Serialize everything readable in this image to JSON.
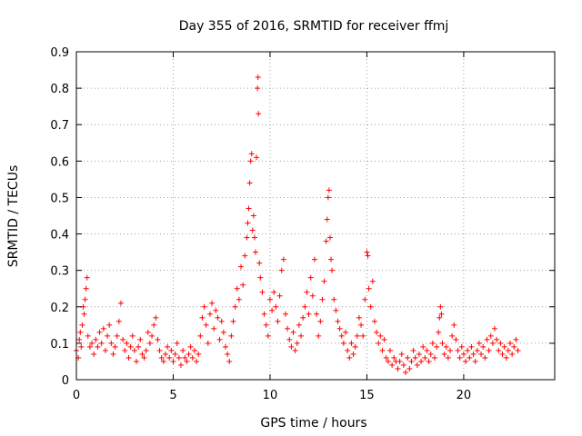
{
  "chart_data": {
    "type": "scatter",
    "title": "Day 355 of 2016, SRMTID for receiver ffmj",
    "xlabel": "GPS time / hours",
    "ylabel": "SRMTID / TECUs",
    "xlim": [
      0,
      24.7
    ],
    "ylim": [
      0,
      0.9
    ],
    "xticks": [
      0,
      5,
      10,
      15,
      20
    ],
    "xtick_labels": [
      "0",
      "5",
      "10",
      "15",
      "20"
    ],
    "yticks": [
      0,
      0.1,
      0.2,
      0.3,
      0.4,
      0.5,
      0.6,
      0.7,
      0.8,
      0.9
    ],
    "ytick_labels": [
      "0",
      "0.1",
      "0.2",
      "0.3",
      "0.4",
      "0.5",
      "0.6",
      "0.7",
      "0.8",
      "0.9"
    ],
    "grid": true,
    "marker": "+",
    "color": "#ff0000",
    "series": [
      {
        "name": "SRMTID",
        "points": [
          [
            0.0,
            0.08
          ],
          [
            0.1,
            0.06
          ],
          [
            0.15,
            0.11
          ],
          [
            0.2,
            0.13
          ],
          [
            0.25,
            0.09
          ],
          [
            0.3,
            0.15
          ],
          [
            0.35,
            0.2
          ],
          [
            0.4,
            0.18
          ],
          [
            0.45,
            0.22
          ],
          [
            0.5,
            0.25
          ],
          [
            0.55,
            0.28
          ],
          [
            0.6,
            0.12
          ],
          [
            0.7,
            0.09
          ],
          [
            0.8,
            0.1
          ],
          [
            0.9,
            0.07
          ],
          [
            1.0,
            0.11
          ],
          [
            1.1,
            0.09
          ],
          [
            1.2,
            0.13
          ],
          [
            1.3,
            0.1
          ],
          [
            1.4,
            0.14
          ],
          [
            1.5,
            0.08
          ],
          [
            1.6,
            0.12
          ],
          [
            1.7,
            0.15
          ],
          [
            1.8,
            0.1
          ],
          [
            1.9,
            0.07
          ],
          [
            2.0,
            0.09
          ],
          [
            2.1,
            0.12
          ],
          [
            2.2,
            0.16
          ],
          [
            2.3,
            0.21
          ],
          [
            2.4,
            0.11
          ],
          [
            2.5,
            0.08
          ],
          [
            2.6,
            0.1
          ],
          [
            2.7,
            0.06
          ],
          [
            2.8,
            0.09
          ],
          [
            2.9,
            0.12
          ],
          [
            3.0,
            0.08
          ],
          [
            3.1,
            0.05
          ],
          [
            3.2,
            0.09
          ],
          [
            3.3,
            0.11
          ],
          [
            3.4,
            0.07
          ],
          [
            3.5,
            0.06
          ],
          [
            3.6,
            0.08
          ],
          [
            3.7,
            0.13
          ],
          [
            3.8,
            0.1
          ],
          [
            3.9,
            0.12
          ],
          [
            4.0,
            0.15
          ],
          [
            4.1,
            0.17
          ],
          [
            4.2,
            0.11
          ],
          [
            4.3,
            0.08
          ],
          [
            4.4,
            0.06
          ],
          [
            4.5,
            0.05
          ],
          [
            4.6,
            0.07
          ],
          [
            4.7,
            0.09
          ],
          [
            4.8,
            0.06
          ],
          [
            4.9,
            0.08
          ],
          [
            5.0,
            0.05
          ],
          [
            5.1,
            0.07
          ],
          [
            5.2,
            0.1
          ],
          [
            5.3,
            0.06
          ],
          [
            5.4,
            0.04
          ],
          [
            5.5,
            0.08
          ],
          [
            5.6,
            0.06
          ],
          [
            5.7,
            0.05
          ],
          [
            5.8,
            0.07
          ],
          [
            5.9,
            0.09
          ],
          [
            6.0,
            0.06
          ],
          [
            6.1,
            0.08
          ],
          [
            6.2,
            0.05
          ],
          [
            6.3,
            0.07
          ],
          [
            6.4,
            0.12
          ],
          [
            6.5,
            0.17
          ],
          [
            6.6,
            0.2
          ],
          [
            6.7,
            0.15
          ],
          [
            6.8,
            0.1
          ],
          [
            6.9,
            0.18
          ],
          [
            7.0,
            0.21
          ],
          [
            7.1,
            0.14
          ],
          [
            7.2,
            0.19
          ],
          [
            7.3,
            0.17
          ],
          [
            7.4,
            0.11
          ],
          [
            7.5,
            0.16
          ],
          [
            7.6,
            0.13
          ],
          [
            7.7,
            0.09
          ],
          [
            7.8,
            0.07
          ],
          [
            7.9,
            0.05
          ],
          [
            8.0,
            0.12
          ],
          [
            8.1,
            0.16
          ],
          [
            8.2,
            0.2
          ],
          [
            8.3,
            0.25
          ],
          [
            8.4,
            0.22
          ],
          [
            8.5,
            0.31
          ],
          [
            8.6,
            0.26
          ],
          [
            8.7,
            0.34
          ],
          [
            8.8,
            0.39
          ],
          [
            8.85,
            0.43
          ],
          [
            8.9,
            0.47
          ],
          [
            8.95,
            0.54
          ],
          [
            9.0,
            0.6
          ],
          [
            9.05,
            0.62
          ],
          [
            9.1,
            0.41
          ],
          [
            9.15,
            0.45
          ],
          [
            9.2,
            0.39
          ],
          [
            9.25,
            0.35
          ],
          [
            9.3,
            0.61
          ],
          [
            9.35,
            0.8
          ],
          [
            9.38,
            0.83
          ],
          [
            9.4,
            0.73
          ],
          [
            9.45,
            0.32
          ],
          [
            9.5,
            0.28
          ],
          [
            9.6,
            0.24
          ],
          [
            9.7,
            0.18
          ],
          [
            9.8,
            0.15
          ],
          [
            9.9,
            0.12
          ],
          [
            10.0,
            0.22
          ],
          [
            10.1,
            0.19
          ],
          [
            10.2,
            0.24
          ],
          [
            10.3,
            0.2
          ],
          [
            10.4,
            0.16
          ],
          [
            10.5,
            0.23
          ],
          [
            10.6,
            0.3
          ],
          [
            10.7,
            0.33
          ],
          [
            10.8,
            0.18
          ],
          [
            10.9,
            0.14
          ],
          [
            11.0,
            0.11
          ],
          [
            11.1,
            0.09
          ],
          [
            11.2,
            0.13
          ],
          [
            11.3,
            0.08
          ],
          [
            11.4,
            0.1
          ],
          [
            11.5,
            0.15
          ],
          [
            11.6,
            0.12
          ],
          [
            11.7,
            0.17
          ],
          [
            11.8,
            0.2
          ],
          [
            11.9,
            0.24
          ],
          [
            12.0,
            0.18
          ],
          [
            12.1,
            0.28
          ],
          [
            12.2,
            0.23
          ],
          [
            12.3,
            0.33
          ],
          [
            12.4,
            0.18
          ],
          [
            12.5,
            0.12
          ],
          [
            12.6,
            0.16
          ],
          [
            12.7,
            0.22
          ],
          [
            12.8,
            0.27
          ],
          [
            12.9,
            0.38
          ],
          [
            12.95,
            0.44
          ],
          [
            13.0,
            0.5
          ],
          [
            13.05,
            0.52
          ],
          [
            13.1,
            0.39
          ],
          [
            13.15,
            0.33
          ],
          [
            13.2,
            0.3
          ],
          [
            13.3,
            0.22
          ],
          [
            13.4,
            0.19
          ],
          [
            13.5,
            0.16
          ],
          [
            13.6,
            0.14
          ],
          [
            13.7,
            0.12
          ],
          [
            13.8,
            0.1
          ],
          [
            13.9,
            0.13
          ],
          [
            14.0,
            0.08
          ],
          [
            14.1,
            0.06
          ],
          [
            14.2,
            0.1
          ],
          [
            14.3,
            0.07
          ],
          [
            14.4,
            0.09
          ],
          [
            14.5,
            0.12
          ],
          [
            14.6,
            0.17
          ],
          [
            14.7,
            0.15
          ],
          [
            14.8,
            0.12
          ],
          [
            14.9,
            0.22
          ],
          [
            15.0,
            0.35
          ],
          [
            15.05,
            0.34
          ],
          [
            15.1,
            0.25
          ],
          [
            15.2,
            0.2
          ],
          [
            15.3,
            0.27
          ],
          [
            15.4,
            0.16
          ],
          [
            15.5,
            0.13
          ],
          [
            15.6,
            0.1
          ],
          [
            15.7,
            0.12
          ],
          [
            15.8,
            0.08
          ],
          [
            15.9,
            0.11
          ],
          [
            16.0,
            0.06
          ],
          [
            16.1,
            0.05
          ],
          [
            16.2,
            0.08
          ],
          [
            16.3,
            0.04
          ],
          [
            16.4,
            0.06
          ],
          [
            16.5,
            0.05
          ],
          [
            16.6,
            0.03
          ],
          [
            16.7,
            0.05
          ],
          [
            16.8,
            0.07
          ],
          [
            16.9,
            0.04
          ],
          [
            17.0,
            0.02
          ],
          [
            17.1,
            0.06
          ],
          [
            17.2,
            0.03
          ],
          [
            17.3,
            0.05
          ],
          [
            17.4,
            0.08
          ],
          [
            17.5,
            0.06
          ],
          [
            17.6,
            0.04
          ],
          [
            17.7,
            0.07
          ],
          [
            17.8,
            0.05
          ],
          [
            17.9,
            0.09
          ],
          [
            18.0,
            0.06
          ],
          [
            18.1,
            0.08
          ],
          [
            18.2,
            0.05
          ],
          [
            18.3,
            0.07
          ],
          [
            18.4,
            0.1
          ],
          [
            18.5,
            0.06
          ],
          [
            18.6,
            0.09
          ],
          [
            18.7,
            0.13
          ],
          [
            18.75,
            0.17
          ],
          [
            18.8,
            0.2
          ],
          [
            18.85,
            0.18
          ],
          [
            18.9,
            0.1
          ],
          [
            19.0,
            0.07
          ],
          [
            19.1,
            0.09
          ],
          [
            19.2,
            0.06
          ],
          [
            19.3,
            0.08
          ],
          [
            19.4,
            0.12
          ],
          [
            19.5,
            0.15
          ],
          [
            19.6,
            0.11
          ],
          [
            19.7,
            0.08
          ],
          [
            19.8,
            0.06
          ],
          [
            19.9,
            0.09
          ],
          [
            20.0,
            0.07
          ],
          [
            20.1,
            0.05
          ],
          [
            20.2,
            0.08
          ],
          [
            20.3,
            0.06
          ],
          [
            20.4,
            0.09
          ],
          [
            20.5,
            0.07
          ],
          [
            20.6,
            0.05
          ],
          [
            20.7,
            0.08
          ],
          [
            20.8,
            0.1
          ],
          [
            20.9,
            0.07
          ],
          [
            21.0,
            0.09
          ],
          [
            21.1,
            0.06
          ],
          [
            21.2,
            0.11
          ],
          [
            21.3,
            0.08
          ],
          [
            21.4,
            0.12
          ],
          [
            21.5,
            0.1
          ],
          [
            21.6,
            0.14
          ],
          [
            21.7,
            0.11
          ],
          [
            21.8,
            0.08
          ],
          [
            21.9,
            0.1
          ],
          [
            22.0,
            0.07
          ],
          [
            22.1,
            0.09
          ],
          [
            22.2,
            0.06
          ],
          [
            22.3,
            0.08
          ],
          [
            22.4,
            0.1
          ],
          [
            22.5,
            0.07
          ],
          [
            22.6,
            0.09
          ],
          [
            22.7,
            0.11
          ],
          [
            22.8,
            0.08
          ]
        ]
      }
    ]
  }
}
